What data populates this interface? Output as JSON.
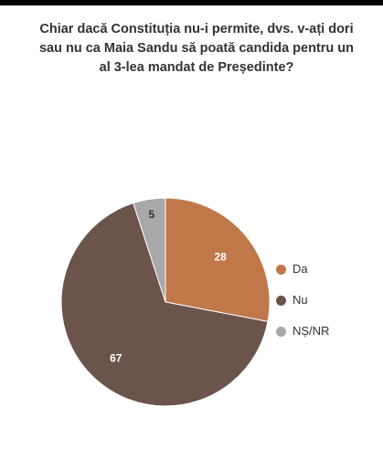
{
  "title": "Chiar dacă Constituția nu-i permite, dvs. v-ați dori sau nu ca Maia Sandu să poată candida pentru un al 3-lea mandat de Președinte?",
  "colors": {
    "top_bar": "#000000",
    "da": "#C0784B",
    "nu": "#6B544C",
    "ns_nr": "#A8A8A8",
    "label_light": "#ffffff",
    "label_dark": "#333333"
  },
  "chart_data": {
    "type": "pie",
    "title": "Chiar dacă Constituția nu-i permite, dvs. v-ați dori sau nu ca Maia Sandu să poată candida pentru un al 3-lea mandat de Președinte?",
    "categories": [
      "Da",
      "Nu",
      "NȘ/NR"
    ],
    "values": [
      28,
      67,
      5
    ],
    "data_labels": [
      "28",
      "67",
      "5"
    ],
    "legend_position": "right",
    "start_angle": "12 o'clock",
    "direction": "clockwise"
  }
}
